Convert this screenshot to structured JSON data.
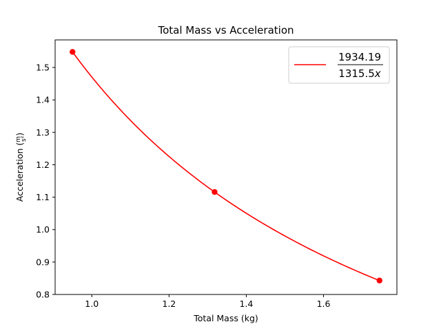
{
  "chart_data": {
    "type": "line",
    "title": "Total Mass vs Acceleration",
    "xlabel": "Total Mass (kg)",
    "ylabel": {
      "main": "Acceleration (",
      "num": "m",
      "den": "s²",
      "close": ")"
    },
    "xlim": [
      0.905,
      1.79
    ],
    "ylim": [
      0.8,
      1.585
    ],
    "xticks": [
      1.0,
      1.2,
      1.4,
      1.6
    ],
    "yticks": [
      0.8,
      0.9,
      1.0,
      1.1,
      1.2,
      1.3,
      1.4,
      1.5
    ],
    "xtick_labels": [
      "1.0",
      "1.2",
      "1.4",
      "1.6"
    ],
    "ytick_labels": [
      "0.8",
      "0.9",
      "1.0",
      "1.1",
      "1.2",
      "1.3",
      "1.4",
      "1.5"
    ],
    "grid": false,
    "legend_position": "top-right",
    "series": [
      {
        "name": {
          "numerator": "1934.19",
          "denominator_value": "1315.5",
          "denominator_var": "x"
        },
        "kind": "fit-curve",
        "color": "#ff0000",
        "numerator": 1934.19,
        "denominator": 1315.5,
        "x_range": [
          0.95,
          1.745
        ]
      },
      {
        "kind": "points",
        "color": "#ff0000",
        "x": [
          0.95,
          1.318,
          1.745
        ],
        "y": [
          1.548,
          1.116,
          0.843
        ]
      }
    ]
  }
}
